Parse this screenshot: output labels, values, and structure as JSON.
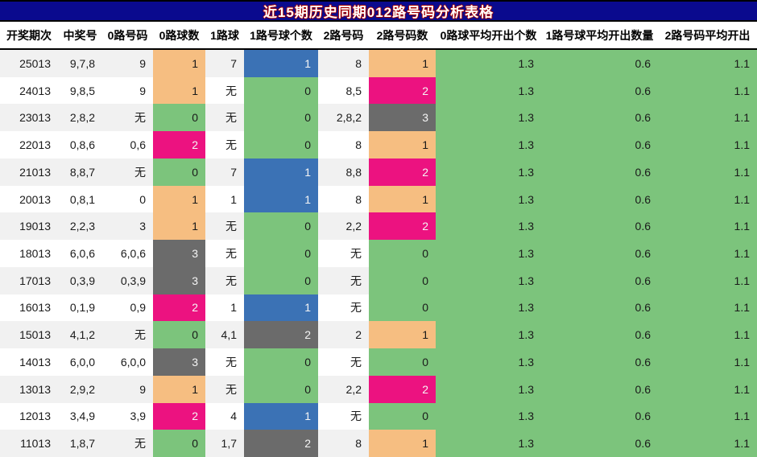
{
  "title": "近15期历史同期012路号码分析表格",
  "colors": {
    "title_bg": "#0a0a8e",
    "title_text": "#ffffff",
    "title_outline": "#a40000",
    "orange": "#f6be81",
    "green": "#7cc47c",
    "blue": "#3b72b5",
    "pink": "#ec1280",
    "gray": "#6b6b6b",
    "row_stripe": "#f1f1f1",
    "row_plain": "#ffffff",
    "light_text": "#f5f5f5",
    "dark_text": "#1a1a1a"
  },
  "chart_data": {
    "type": "table",
    "title": "近15期历史同期012路号码分析表格",
    "none_symbol": "无",
    "columns": [
      {
        "key": "period",
        "label": "开奖期次",
        "width": 72,
        "type": "plain"
      },
      {
        "key": "win",
        "label": "中奖号",
        "width": 55,
        "type": "plain"
      },
      {
        "key": "r0",
        "label": "0路号码",
        "width": 63,
        "type": "plain"
      },
      {
        "key": "n0",
        "label": "0路球数",
        "width": 65,
        "type": "count"
      },
      {
        "key": "b1",
        "label": "1路球",
        "width": 48,
        "type": "plain"
      },
      {
        "key": "n1",
        "label": "1路号球个数",
        "width": 92,
        "type": "count"
      },
      {
        "key": "r2",
        "label": "2路号码",
        "width": 63,
        "type": "plain"
      },
      {
        "key": "n2",
        "label": "2路号码数",
        "width": 83,
        "type": "count"
      },
      {
        "key": "avg0",
        "label": "0路球平均开出个数",
        "width": 131,
        "type": "avg"
      },
      {
        "key": "avg1",
        "label": "1路号球平均开出数量",
        "width": 145,
        "type": "avg"
      },
      {
        "key": "avg2",
        "label": "2路号码平均开出",
        "width": 123,
        "type": "avg"
      }
    ],
    "rows": [
      {
        "period": "25013",
        "win": "9,7,8",
        "r0": "9",
        "n0": "1",
        "n0_color": "orange",
        "b1": "7",
        "n1": "1",
        "n1_color": "blue",
        "r2": "8",
        "n2": "1",
        "n2_color": "orange",
        "avg0": "1.3",
        "avg1": "0.6",
        "avg2": "1.1"
      },
      {
        "period": "24013",
        "win": "9,8,5",
        "r0": "9",
        "n0": "1",
        "n0_color": "orange",
        "b1": "无",
        "n1": "0",
        "n1_color": "green",
        "r2": "8,5",
        "n2": "2",
        "n2_color": "pink",
        "avg0": "1.3",
        "avg1": "0.6",
        "avg2": "1.1"
      },
      {
        "period": "23013",
        "win": "2,8,2",
        "r0": "无",
        "n0": "0",
        "n0_color": "green",
        "b1": "无",
        "n1": "0",
        "n1_color": "green",
        "r2": "2,8,2",
        "n2": "3",
        "n2_color": "gray",
        "avg0": "1.3",
        "avg1": "0.6",
        "avg2": "1.1"
      },
      {
        "period": "22013",
        "win": "0,8,6",
        "r0": "0,6",
        "n0": "2",
        "n0_color": "pink",
        "b1": "无",
        "n1": "0",
        "n1_color": "green",
        "r2": "8",
        "n2": "1",
        "n2_color": "orange",
        "avg0": "1.3",
        "avg1": "0.6",
        "avg2": "1.1"
      },
      {
        "period": "21013",
        "win": "8,8,7",
        "r0": "无",
        "n0": "0",
        "n0_color": "green",
        "b1": "7",
        "n1": "1",
        "n1_color": "blue",
        "r2": "8,8",
        "n2": "2",
        "n2_color": "pink",
        "avg0": "1.3",
        "avg1": "0.6",
        "avg2": "1.1"
      },
      {
        "period": "20013",
        "win": "0,8,1",
        "r0": "0",
        "n0": "1",
        "n0_color": "orange",
        "b1": "1",
        "n1": "1",
        "n1_color": "blue",
        "r2": "8",
        "n2": "1",
        "n2_color": "orange",
        "avg0": "1.3",
        "avg1": "0.6",
        "avg2": "1.1"
      },
      {
        "period": "19013",
        "win": "2,2,3",
        "r0": "3",
        "n0": "1",
        "n0_color": "orange",
        "b1": "无",
        "n1": "0",
        "n1_color": "green",
        "r2": "2,2",
        "n2": "2",
        "n2_color": "pink",
        "avg0": "1.3",
        "avg1": "0.6",
        "avg2": "1.1"
      },
      {
        "period": "18013",
        "win": "6,0,6",
        "r0": "6,0,6",
        "n0": "3",
        "n0_color": "gray",
        "b1": "无",
        "n1": "0",
        "n1_color": "green",
        "r2": "无",
        "n2": "0",
        "n2_color": "green",
        "avg0": "1.3",
        "avg1": "0.6",
        "avg2": "1.1"
      },
      {
        "period": "17013",
        "win": "0,3,9",
        "r0": "0,3,9",
        "n0": "3",
        "n0_color": "gray",
        "b1": "无",
        "n1": "0",
        "n1_color": "green",
        "r2": "无",
        "n2": "0",
        "n2_color": "green",
        "avg0": "1.3",
        "avg1": "0.6",
        "avg2": "1.1"
      },
      {
        "period": "16013",
        "win": "0,1,9",
        "r0": "0,9",
        "n0": "2",
        "n0_color": "pink",
        "b1": "1",
        "n1": "1",
        "n1_color": "blue",
        "r2": "无",
        "n2": "0",
        "n2_color": "green",
        "avg0": "1.3",
        "avg1": "0.6",
        "avg2": "1.1"
      },
      {
        "period": "15013",
        "win": "4,1,2",
        "r0": "无",
        "n0": "0",
        "n0_color": "green",
        "b1": "4,1",
        "n1": "2",
        "n1_color": "gray",
        "r2": "2",
        "n2": "1",
        "n2_color": "orange",
        "avg0": "1.3",
        "avg1": "0.6",
        "avg2": "1.1"
      },
      {
        "period": "14013",
        "win": "6,0,0",
        "r0": "6,0,0",
        "n0": "3",
        "n0_color": "gray",
        "b1": "无",
        "n1": "0",
        "n1_color": "green",
        "r2": "无",
        "n2": "0",
        "n2_color": "green",
        "avg0": "1.3",
        "avg1": "0.6",
        "avg2": "1.1"
      },
      {
        "period": "13013",
        "win": "2,9,2",
        "r0": "9",
        "n0": "1",
        "n0_color": "orange",
        "b1": "无",
        "n1": "0",
        "n1_color": "green",
        "r2": "2,2",
        "n2": "2",
        "n2_color": "pink",
        "avg0": "1.3",
        "avg1": "0.6",
        "avg2": "1.1"
      },
      {
        "period": "12013",
        "win": "3,4,9",
        "r0": "3,9",
        "n0": "2",
        "n0_color": "pink",
        "b1": "4",
        "n1": "1",
        "n1_color": "blue",
        "r2": "无",
        "n2": "0",
        "n2_color": "green",
        "avg0": "1.3",
        "avg1": "0.6",
        "avg2": "1.1"
      },
      {
        "period": "11013",
        "win": "1,8,7",
        "r0": "无",
        "n0": "0",
        "n0_color": "green",
        "b1": "1,7",
        "n1": "2",
        "n1_color": "gray",
        "r2": "8",
        "n2": "1",
        "n2_color": "orange",
        "avg0": "1.3",
        "avg1": "0.6",
        "avg2": "1.1"
      }
    ]
  }
}
